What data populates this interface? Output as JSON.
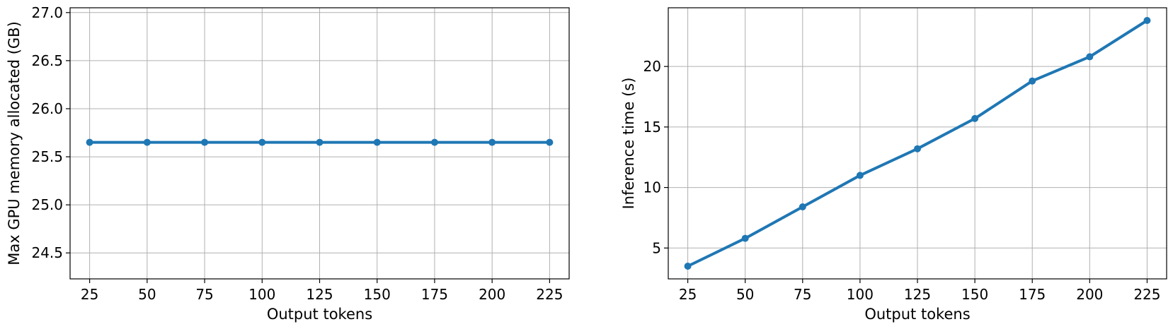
{
  "chart_data": [
    {
      "type": "line",
      "title": "",
      "xlabel": "Output tokens",
      "ylabel": "Max GPU memory allocated (GB)",
      "x": [
        25,
        50,
        75,
        100,
        125,
        150,
        175,
        200,
        225
      ],
      "xticks": [
        25,
        50,
        75,
        100,
        125,
        150,
        175,
        200,
        225
      ],
      "xlim": [
        16.5,
        233.5
      ],
      "yticks": [
        24.5,
        25.0,
        25.5,
        26.0,
        26.5,
        27.0
      ],
      "ytick_labels": [
        "24.5",
        "25.0",
        "25.5",
        "26.0",
        "26.5",
        "27.0"
      ],
      "ylim": [
        24.23,
        27.05
      ],
      "grid": true,
      "series": [
        {
          "values": [
            25.65,
            25.65,
            25.65,
            25.65,
            25.65,
            25.65,
            25.65,
            25.65,
            25.65
          ],
          "color": "#1f77b4",
          "marker": "circle"
        }
      ]
    },
    {
      "type": "line",
      "title": "",
      "xlabel": "Output tokens",
      "ylabel": "Inference time (s)",
      "x": [
        25,
        50,
        75,
        100,
        125,
        150,
        175,
        200,
        225
      ],
      "xticks": [
        25,
        50,
        75,
        100,
        125,
        150,
        175,
        200,
        225
      ],
      "xlim": [
        16.5,
        233.5
      ],
      "yticks": [
        5,
        10,
        15,
        20
      ],
      "ytick_labels": [
        "5",
        "10",
        "15",
        "20"
      ],
      "ylim": [
        2.45,
        24.85
      ],
      "grid": true,
      "series": [
        {
          "values": [
            3.5,
            5.8,
            8.4,
            11.0,
            13.2,
            15.7,
            18.8,
            20.8,
            23.8
          ],
          "color": "#1f77b4",
          "marker": "circle"
        }
      ]
    }
  ]
}
